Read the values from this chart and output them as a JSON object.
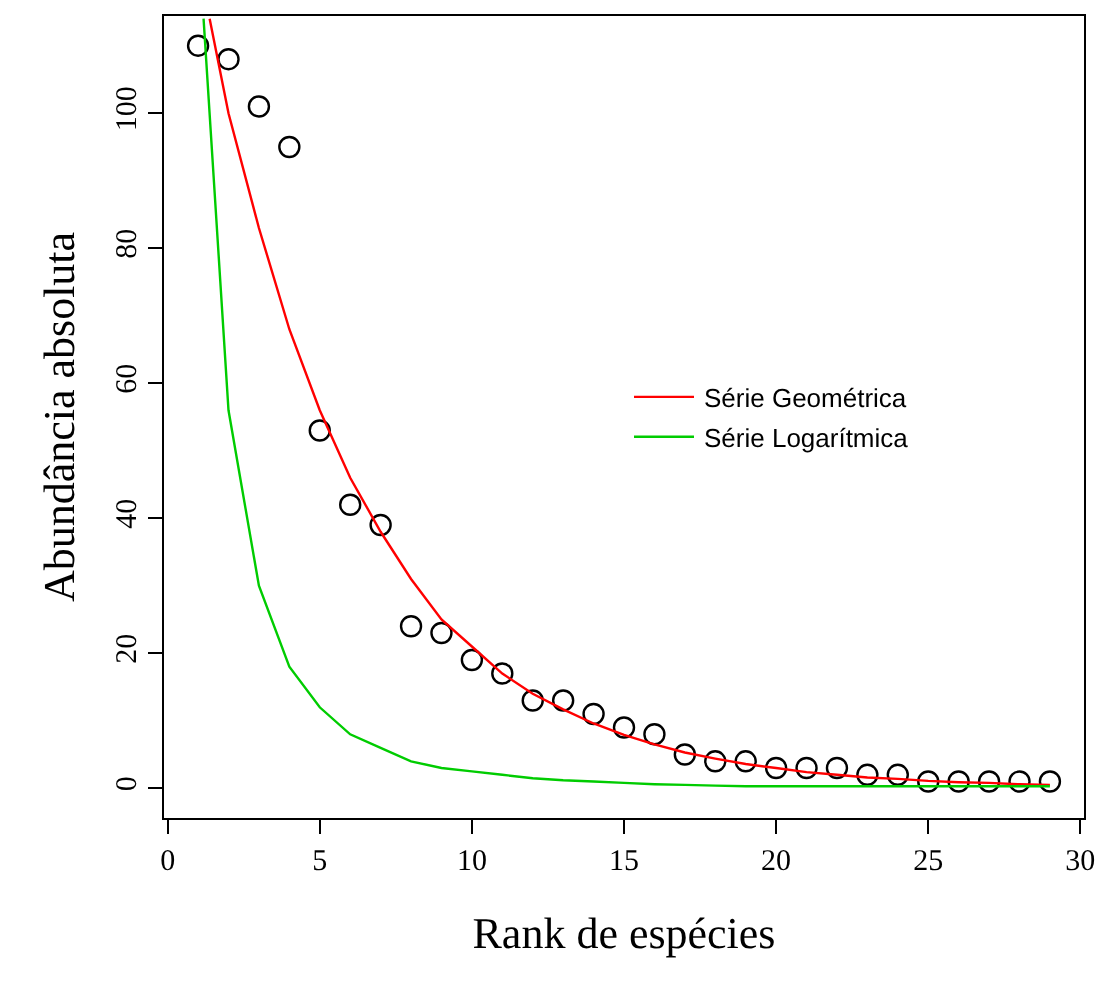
{
  "chart_data": {
    "type": "scatter",
    "xlabel": "Rank de espécies",
    "ylabel": "Abundância absoluta",
    "x": [
      1,
      2,
      3,
      4,
      5,
      6,
      7,
      8,
      9,
      10,
      11,
      12,
      13,
      14,
      15,
      16,
      17,
      18,
      19,
      20,
      21,
      22,
      23,
      24,
      25,
      26,
      27,
      28,
      29
    ],
    "values": [
      110,
      108,
      101,
      95,
      53,
      42,
      39,
      24,
      23,
      19,
      17,
      13,
      13,
      11,
      9,
      8,
      5,
      4,
      4,
      3,
      3,
      3,
      2,
      2,
      1,
      1,
      1,
      1,
      1
    ],
    "marker": "circle",
    "series": [
      {
        "type": "line",
        "marker": "none",
        "name": "Série Geométrica",
        "color": "#ff0000",
        "x": [
          1.38,
          2,
          3,
          4,
          5,
          6,
          7,
          8,
          9,
          10,
          11,
          12,
          13,
          14,
          15,
          16,
          17,
          18,
          19,
          20,
          21,
          22,
          23,
          24,
          25,
          26,
          27,
          28,
          29
        ],
        "values": [
          114,
          100,
          83,
          68,
          56,
          46,
          38,
          31,
          25,
          21,
          17,
          14,
          11.7,
          9.6,
          7.9,
          6.5,
          5.3,
          4.4,
          3.6,
          3.0,
          2.4,
          2.0,
          1.6,
          1.4,
          1.1,
          0.9,
          0.8,
          0.6,
          0.5
        ]
      },
      {
        "type": "line",
        "marker": "none",
        "name": "Série Logarítmica",
        "color": "#00cc00",
        "x": [
          1.18,
          2,
          3,
          4,
          5,
          6,
          7,
          8,
          9,
          10,
          11,
          12,
          13,
          14,
          15,
          16,
          17,
          18,
          19,
          20,
          21,
          22,
          23,
          24,
          25,
          26,
          27,
          28,
          29
        ],
        "values": [
          114,
          56,
          30,
          18,
          12,
          8,
          6,
          4,
          3,
          2.5,
          2,
          1.5,
          1.2,
          1,
          0.8,
          0.6,
          0.5,
          0.4,
          0.3,
          0.3,
          0.3,
          0.3,
          0.3,
          0.3,
          0.3,
          0.3,
          0.3,
          0.3,
          0.3
        ]
      }
    ],
    "xlim": [
      -0.12,
      30.12
    ],
    "xticks": [
      0,
      5,
      10,
      15,
      20,
      25,
      30
    ],
    "ylim": [
      -4.4,
      114.4
    ],
    "yticks": [
      0,
      20,
      40,
      60,
      80,
      100
    ],
    "legend": "right"
  }
}
